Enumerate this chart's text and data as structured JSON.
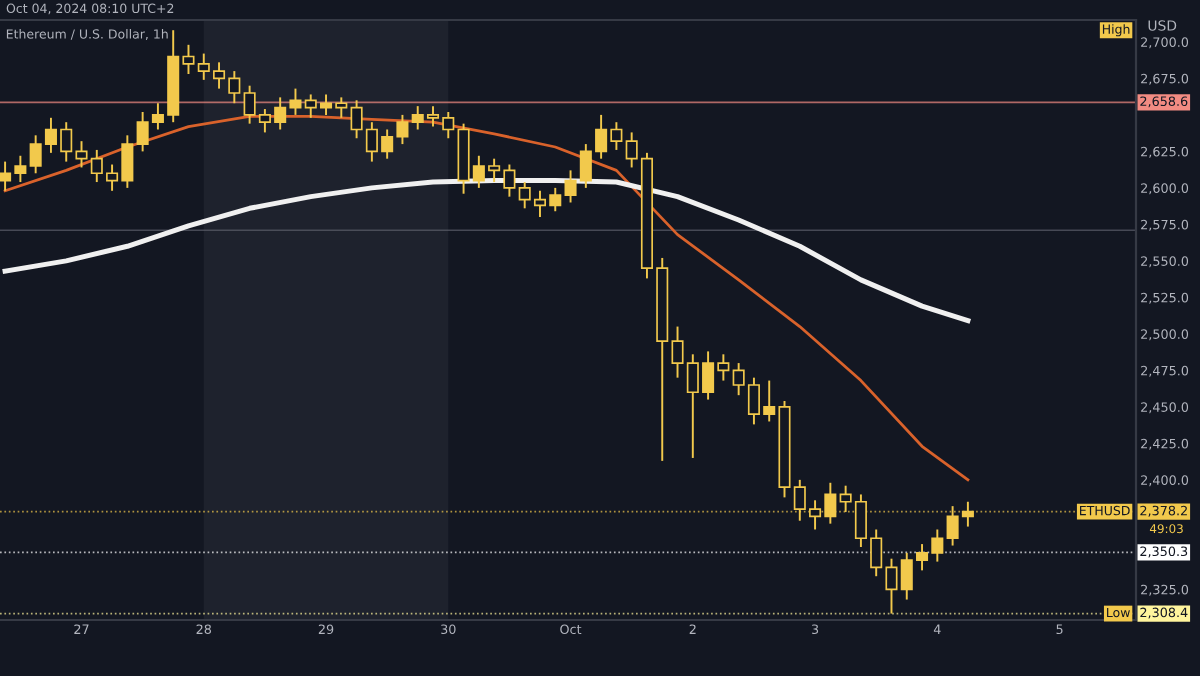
{
  "chart_data": {
    "type": "candlestick",
    "title": "Ethereum / U.S. Dollar, 1h",
    "ylabel": "USD",
    "color": "#f2c94c",
    "x": [
      "2024-09-26T09:00",
      "2024-09-26T12:00",
      "2024-09-26T15:00",
      "2024-09-26T18:00",
      "2024-09-26T21:00",
      "2024-09-27T00:00",
      "2024-09-27T03:00",
      "2024-09-27T06:00",
      "2024-09-27T09:00",
      "2024-09-27T12:00",
      "2024-09-27T15:00",
      "2024-09-27T18:00",
      "2024-09-27T21:00",
      "2024-09-28T00:00",
      "2024-09-28T03:00",
      "2024-09-28T06:00",
      "2024-09-28T09:00",
      "2024-09-28T12:00",
      "2024-09-28T15:00",
      "2024-09-28T18:00",
      "2024-09-28T21:00",
      "2024-09-29T00:00",
      "2024-09-29T03:00",
      "2024-09-29T06:00",
      "2024-09-29T09:00",
      "2024-09-29T12:00",
      "2024-09-29T15:00",
      "2024-09-29T18:00",
      "2024-09-29T21:00",
      "2024-09-30T00:00",
      "2024-09-30T03:00",
      "2024-09-30T06:00",
      "2024-09-30T09:00",
      "2024-09-30T12:00",
      "2024-09-30T15:00",
      "2024-09-30T18:00",
      "2024-09-30T21:00",
      "2024-10-01T00:00",
      "2024-10-01T03:00",
      "2024-10-01T06:00",
      "2024-10-01T09:00",
      "2024-10-01T12:00",
      "2024-10-01T15:00",
      "2024-10-01T18:00",
      "2024-10-01T21:00",
      "2024-10-02T00:00",
      "2024-10-02T03:00",
      "2024-10-02T06:00",
      "2024-10-02T09:00",
      "2024-10-02T12:00",
      "2024-10-02T15:00",
      "2024-10-02T18:00",
      "2024-10-02T21:00",
      "2024-10-03T00:00",
      "2024-10-03T03:00",
      "2024-10-03T06:00",
      "2024-10-03T09:00",
      "2024-10-03T12:00",
      "2024-10-03T15:00",
      "2024-10-03T18:00",
      "2024-10-03T21:00",
      "2024-10-04T00:00",
      "2024-10-04T03:00",
      "2024-10-04T06:00"
    ],
    "ohlc": [
      [
        2605,
        2618,
        2598,
        2610
      ],
      [
        2610,
        2622,
        2604,
        2615
      ],
      [
        2615,
        2636,
        2610,
        2630
      ],
      [
        2630,
        2648,
        2624,
        2640
      ],
      [
        2640,
        2645,
        2618,
        2625
      ],
      [
        2625,
        2632,
        2614,
        2620
      ],
      [
        2620,
        2626,
        2604,
        2610
      ],
      [
        2610,
        2616,
        2598,
        2605
      ],
      [
        2605,
        2636,
        2600,
        2630
      ],
      [
        2630,
        2652,
        2625,
        2645
      ],
      [
        2645,
        2658,
        2640,
        2650
      ],
      [
        2650,
        2708,
        2645,
        2690
      ],
      [
        2690,
        2698,
        2678,
        2685
      ],
      [
        2685,
        2692,
        2674,
        2680
      ],
      [
        2680,
        2686,
        2668,
        2675
      ],
      [
        2675,
        2680,
        2658,
        2665
      ],
      [
        2665,
        2670,
        2644,
        2650
      ],
      [
        2650,
        2654,
        2638,
        2645
      ],
      [
        2645,
        2662,
        2640,
        2655
      ],
      [
        2655,
        2668,
        2650,
        2660
      ],
      [
        2660,
        2664,
        2648,
        2655
      ],
      [
        2655,
        2664,
        2650,
        2658
      ],
      [
        2658,
        2662,
        2648,
        2655
      ],
      [
        2655,
        2660,
        2634,
        2640
      ],
      [
        2640,
        2645,
        2618,
        2625
      ],
      [
        2625,
        2640,
        2620,
        2635
      ],
      [
        2635,
        2650,
        2630,
        2645
      ],
      [
        2645,
        2656,
        2640,
        2650
      ],
      [
        2650,
        2656,
        2642,
        2648
      ],
      [
        2648,
        2652,
        2634,
        2640
      ],
      [
        2640,
        2644,
        2596,
        2605
      ],
      [
        2605,
        2622,
        2600,
        2615
      ],
      [
        2615,
        2620,
        2604,
        2612
      ],
      [
        2612,
        2616,
        2594,
        2600
      ],
      [
        2600,
        2604,
        2586,
        2592
      ],
      [
        2592,
        2598,
        2580,
        2588
      ],
      [
        2588,
        2600,
        2584,
        2595
      ],
      [
        2595,
        2612,
        2590,
        2605
      ],
      [
        2605,
        2630,
        2600,
        2625
      ],
      [
        2625,
        2650,
        2620,
        2640
      ],
      [
        2640,
        2645,
        2626,
        2632
      ],
      [
        2632,
        2638,
        2614,
        2620
      ],
      [
        2620,
        2624,
        2538,
        2545
      ],
      [
        2545,
        2552,
        2413,
        2495
      ],
      [
        2495,
        2505,
        2470,
        2480
      ],
      [
        2480,
        2486,
        2415,
        2460
      ],
      [
        2460,
        2488,
        2455,
        2480
      ],
      [
        2480,
        2486,
        2468,
        2475
      ],
      [
        2475,
        2480,
        2458,
        2465
      ],
      [
        2465,
        2470,
        2438,
        2445
      ],
      [
        2445,
        2468,
        2440,
        2450
      ],
      [
        2450,
        2454,
        2388,
        2395
      ],
      [
        2395,
        2400,
        2372,
        2380
      ],
      [
        2380,
        2386,
        2366,
        2375
      ],
      [
        2375,
        2398,
        2370,
        2390
      ],
      [
        2390,
        2396,
        2378,
        2385
      ],
      [
        2385,
        2390,
        2354,
        2360
      ],
      [
        2360,
        2366,
        2334,
        2340
      ],
      [
        2340,
        2346,
        2308.4,
        2325
      ],
      [
        2325,
        2350,
        2318,
        2345
      ],
      [
        2345,
        2356,
        2338,
        2350
      ],
      [
        2350,
        2366,
        2344,
        2360
      ],
      [
        2360,
        2382,
        2355,
        2375
      ],
      [
        2375,
        2385,
        2368,
        2378.2
      ]
    ],
    "series": [
      {
        "type": "line",
        "color": "#d9622b",
        "x": [
          "2024-09-26T09:00",
          "2024-09-26T21:00",
          "2024-09-27T09:00",
          "2024-09-27T21:00",
          "2024-09-28T09:00",
          "2024-09-28T21:00",
          "2024-09-29T09:00",
          "2024-09-29T21:00",
          "2024-09-30T09:00",
          "2024-09-30T21:00",
          "2024-10-01T09:00",
          "2024-10-01T21:00",
          "2024-10-02T09:00",
          "2024-10-02T21:00",
          "2024-10-03T09:00",
          "2024-10-03T21:00",
          "2024-10-04T06:00"
        ],
        "values": [
          2598,
          2612,
          2628,
          2642,
          2649,
          2649,
          2647,
          2645,
          2637,
          2628,
          2612,
          2568,
          2537,
          2505,
          2468,
          2423,
          2400
        ]
      },
      {
        "type": "line",
        "color": "#f0f0f0",
        "x": [
          "2024-09-26T09:00",
          "2024-09-26T21:00",
          "2024-09-27T09:00",
          "2024-09-27T21:00",
          "2024-09-28T09:00",
          "2024-09-28T21:00",
          "2024-09-29T09:00",
          "2024-09-29T21:00",
          "2024-09-30T09:00",
          "2024-09-30T21:00",
          "2024-10-01T09:00",
          "2024-10-01T21:00",
          "2024-10-02T09:00",
          "2024-10-02T21:00",
          "2024-10-03T09:00",
          "2024-10-03T21:00",
          "2024-10-04T06:00"
        ],
        "values": [
          2543,
          2550,
          2560,
          2574,
          2586,
          2594,
          2600,
          2604,
          2605,
          2605,
          2604,
          2594,
          2578,
          2560,
          2537,
          2519,
          2509
        ]
      }
    ],
    "xlim": [
      "2024-09-26T08:00",
      "2024-10-05T15:00"
    ],
    "xticks": [
      {
        "value": "2024-09-27",
        "label": "27"
      },
      {
        "value": "2024-09-28",
        "label": "28"
      },
      {
        "value": "2024-09-29",
        "label": "29"
      },
      {
        "value": "2024-09-30",
        "label": "30"
      },
      {
        "value": "2024-10-01",
        "label": "Oct"
      },
      {
        "value": "2024-10-02",
        "label": "2"
      },
      {
        "value": "2024-10-03",
        "label": "3"
      },
      {
        "value": "2024-10-04",
        "label": "4"
      },
      {
        "value": "2024-10-05",
        "label": "5"
      }
    ],
    "ylim": [
      2304,
      2715
    ],
    "yticks": [
      {
        "value": 2325,
        "label": "2,325.0"
      },
      {
        "value": 2400,
        "label": "2,400.0"
      },
      {
        "value": 2425,
        "label": "2,425.0"
      },
      {
        "value": 2450,
        "label": "2,450.0"
      },
      {
        "value": 2475,
        "label": "2,475.0"
      },
      {
        "value": 2500,
        "label": "2,500.0"
      },
      {
        "value": 2525,
        "label": "2,525.0"
      },
      {
        "value": 2550,
        "label": "2,550.0"
      },
      {
        "value": 2575,
        "label": "2,575.0"
      },
      {
        "value": 2600,
        "label": "2,600.0"
      },
      {
        "value": 2625,
        "label": "2,625.0"
      },
      {
        "value": 2675,
        "label": "2,675.0"
      },
      {
        "value": 2700,
        "label": "2,700.0"
      }
    ],
    "ref_lines": [
      {
        "axis": "y",
        "value": 2658.6,
        "label": "2,658.6",
        "color": "#f28b82",
        "line_style": "solid"
      },
      {
        "axis": "y",
        "value": 2571,
        "color": "#5d606b",
        "line_style": "solid"
      },
      {
        "axis": "y",
        "value": 2378.2,
        "label": "2,378.2",
        "color": "#f2c94c",
        "line_style": "dotted"
      },
      {
        "axis": "y",
        "value": 2350.3,
        "label": "2,350.3",
        "color": "#ffffff",
        "line_style": "dotted"
      },
      {
        "axis": "y",
        "value": 2308.4,
        "label": "2,308.4",
        "color": "#fff59d",
        "line_style": "dotted"
      }
    ],
    "bands": [
      {
        "axis": "x",
        "from": "2024-09-28T00:00",
        "to": "2024-09-30T00:00",
        "color": "#1e222d"
      }
    ],
    "annotations": [
      "Oct 04, 2024 08:10 UTC+2",
      {
        "text": "High",
        "y": 2708
      },
      {
        "text": "ETHUSD",
        "y": 2378.2
      },
      "49:03",
      {
        "text": "Low",
        "y": 2308.4
      }
    ],
    "grid": false
  }
}
